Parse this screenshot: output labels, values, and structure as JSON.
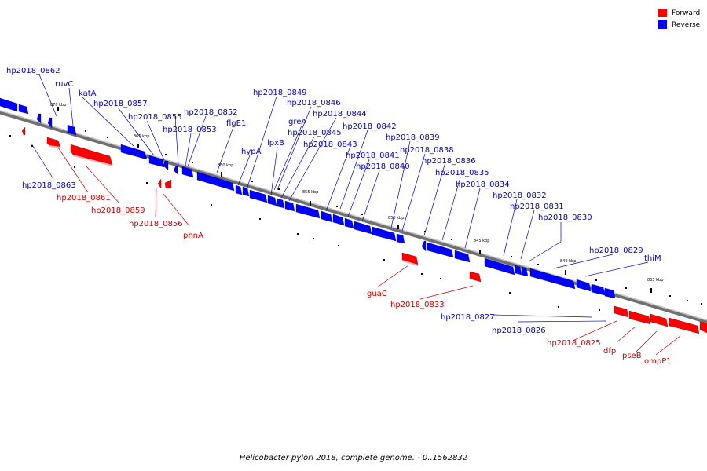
{
  "legend": {
    "forward_label": "Forward",
    "reverse_label": "Reverse",
    "forward_color": "#ff0000",
    "reverse_color": "#0000ff"
  },
  "caption": "Helicobacter pylori 2018, complete genome. - 0..1562832",
  "scale_labels": [
    "870 kbp",
    "865 kbp",
    "860 kbp",
    "855 kbp",
    "850 kbp",
    "845 kbp",
    "840 kbp",
    "835 kbp"
  ],
  "reverse_gene_labels": [
    "hp2018_0862",
    "ruvC",
    "katA",
    "hp2018_0857",
    "hp2018_0855",
    "hp2018_0853",
    "hp2018_0852",
    "flgE1",
    "hypA",
    "hp2018_0849",
    "hp2018_0846",
    "lpxB",
    "greA",
    "hp2018_0844",
    "hp2018_0845",
    "hp2018_0843",
    "hp2018_0842",
    "hp2018_0841",
    "hp2018_0839",
    "hp2018_0840",
    "hp2018_0838",
    "hp2018_0836",
    "hp2018_0835",
    "hp2018_0834",
    "hp2018_0832",
    "hp2018_0831",
    "hp2018_0830",
    "hp2018_0829",
    "thiM",
    "hp2018_0863",
    "hp2018_0827",
    "hp2018_0826"
  ],
  "forward_gene_labels": [
    "hp2018_0861",
    "hp2018_0859",
    "hp2018_0856",
    "phnA",
    "guaC",
    "hp2018_0833",
    "hp2018_0825",
    "dfp",
    "pseB",
    "ompP1"
  ]
}
